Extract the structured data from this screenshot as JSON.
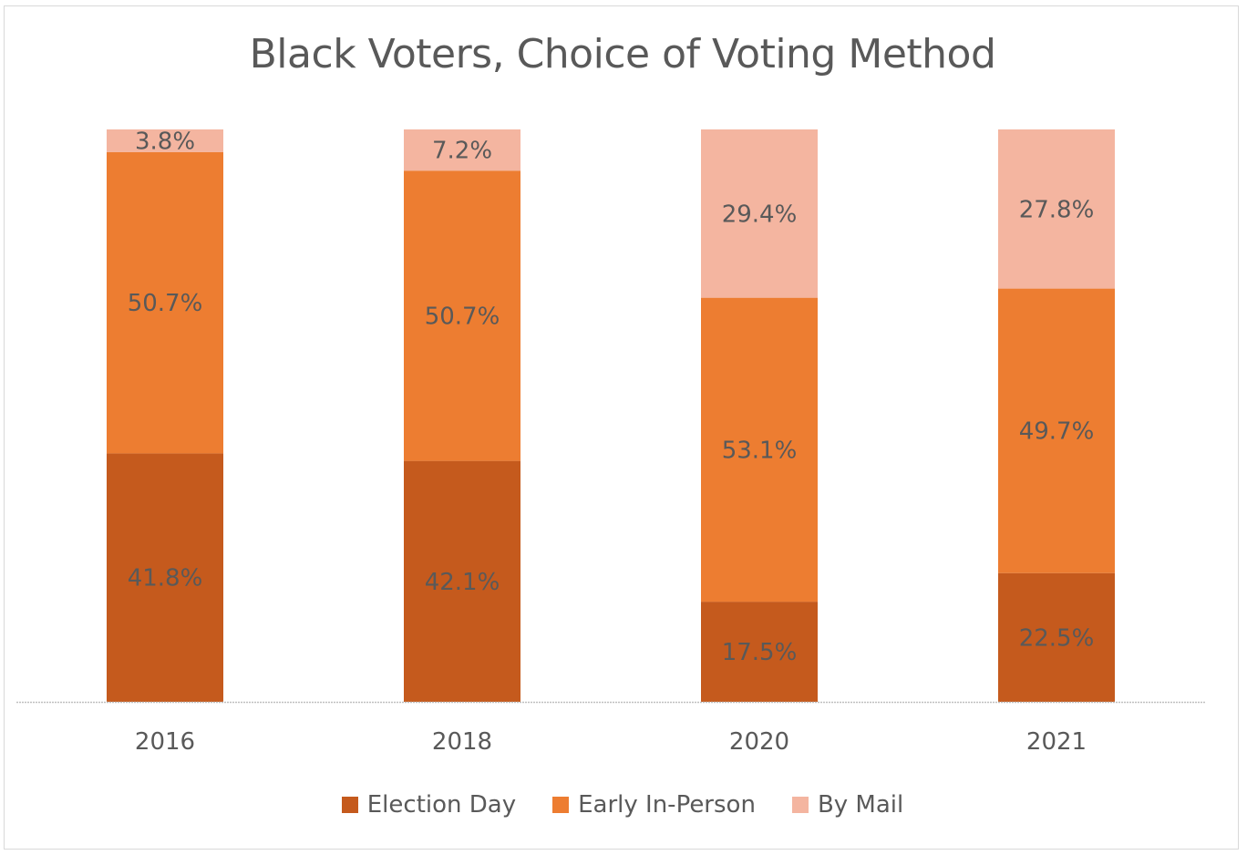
{
  "chart_data": {
    "type": "bar",
    "stacked": true,
    "title": "Black Voters, Choice of Voting Method",
    "categories": [
      "2016",
      "2018",
      "2020",
      "2021"
    ],
    "series": [
      {
        "name": "Election Day",
        "values": [
          41.8,
          42.1,
          17.5,
          22.5
        ],
        "labels": [
          "41.8%",
          "42.1%",
          "17.5%",
          "22.5%"
        ],
        "color": "#c55a1d"
      },
      {
        "name": "Early In-Person",
        "values": [
          50.7,
          50.7,
          53.1,
          49.7
        ],
        "labels": [
          "50.7%",
          "50.7%",
          "53.1%",
          "49.7%"
        ],
        "color": "#ed7d31"
      },
      {
        "name": "By Mail",
        "values": [
          3.8,
          7.2,
          29.4,
          27.8
        ],
        "labels": [
          "3.8%",
          "7.2%",
          "29.4%",
          "27.8%"
        ],
        "color": "#f4b5a0"
      }
    ],
    "ylim": [
      0,
      100
    ],
    "grid": false,
    "legend": "bottom",
    "label_color": "#595959",
    "axis_color": "#bfbfbf"
  }
}
